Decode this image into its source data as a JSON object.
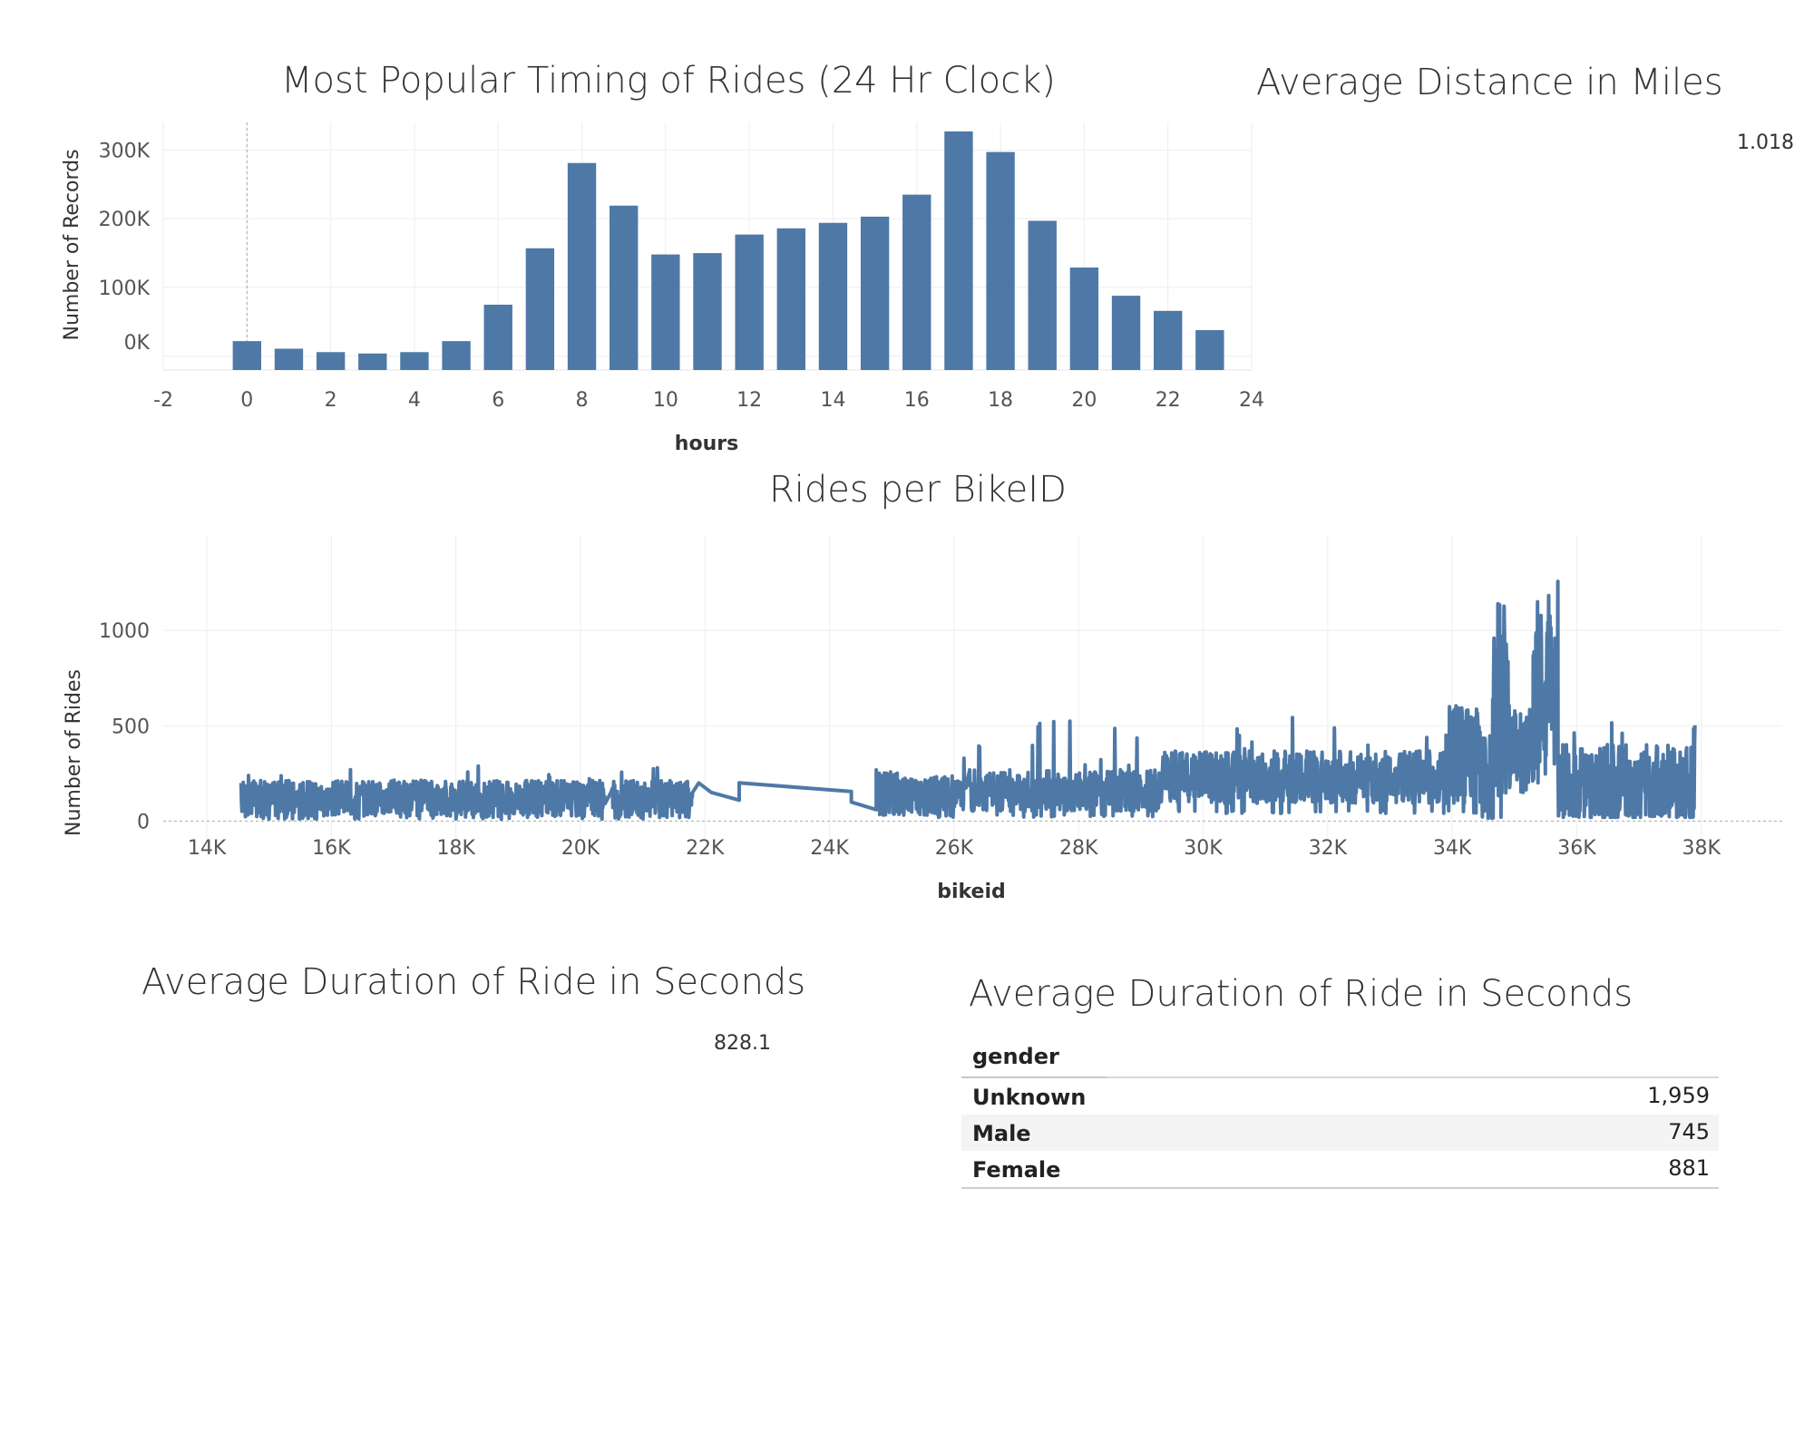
{
  "chart_data": [
    {
      "type": "bar",
      "title": "Most Popular Timing of Rides (24 Hr Clock)",
      "xlabel": "hours",
      "ylabel": "Number of Records",
      "xlim": [
        -2,
        24
      ],
      "ylim": [
        -20000,
        340000
      ],
      "xticks": [
        "-2",
        "0",
        "2",
        "4",
        "6",
        "8",
        "10",
        "12",
        "14",
        "16",
        "18",
        "20",
        "22",
        "24"
      ],
      "yticks": [
        "0K",
        "100K",
        "200K",
        "300K"
      ],
      "x": [
        0,
        1,
        2,
        3,
        4,
        5,
        6,
        7,
        8,
        9,
        10,
        11,
        12,
        13,
        14,
        15,
        16,
        17,
        18,
        19,
        20,
        21,
        22,
        23
      ],
      "values": [
        22000,
        11000,
        6000,
        4000,
        6000,
        22000,
        75000,
        157000,
        281000,
        219000,
        148000,
        150000,
        177000,
        186000,
        194000,
        203000,
        235000,
        327000,
        297000,
        197000,
        129000,
        88000,
        66000,
        38000
      ],
      "grid": true,
      "color": "#4e79a7"
    },
    {
      "type": "line",
      "title": "Rides per BikeID",
      "xlabel": "bikeid",
      "ylabel": "Number of Rides",
      "xlim": [
        13300,
        39300
      ],
      "ylim": [
        -60,
        1500
      ],
      "xticks": [
        "14K",
        "16K",
        "18K",
        "20K",
        "22K",
        "24K",
        "26K",
        "28K",
        "30K",
        "32K",
        "34K",
        "36K",
        "38K"
      ],
      "yticks": [
        "0",
        "500",
        "1000"
      ],
      "segments": [
        {
          "from": 14550,
          "to": 20400,
          "low": 10,
          "high": 210,
          "spike": 290,
          "avg": 120
        },
        {
          "from": 20500,
          "to": 21800,
          "low": 10,
          "high": 215,
          "spike": 280,
          "avg": 115
        },
        {
          "from": 24750,
          "to": 25200,
          "low": 30,
          "high": 280,
          "spike": 340,
          "avg": 150
        },
        {
          "from": 25200,
          "to": 26200,
          "low": 20,
          "high": 230,
          "spike": 390,
          "avg": 140
        },
        {
          "from": 26250,
          "to": 29300,
          "low": 20,
          "high": 250,
          "spike": 530,
          "avg": 160
        },
        {
          "from": 29300,
          "to": 33900,
          "low": 40,
          "high": 330,
          "spike": 560,
          "avg": 230
        },
        {
          "from": 33900,
          "to": 34450,
          "low": 40,
          "high": 580,
          "spike": 660,
          "avg": 350
        },
        {
          "from": 34450,
          "to": 34650,
          "low": 10,
          "high": 500,
          "spike": 660,
          "avg": 250
        },
        {
          "from": 34650,
          "to": 34900,
          "low": 10,
          "high": 1150,
          "spike": 1150,
          "avg": 600
        },
        {
          "from": 34900,
          "to": 35300,
          "low": 150,
          "high": 580,
          "spike": 620,
          "avg": 380
        },
        {
          "from": 35300,
          "to": 35500,
          "low": 200,
          "high": 1150,
          "spike": 1150,
          "avg": 650
        },
        {
          "from": 35500,
          "to": 35700,
          "low": 300,
          "high": 1380,
          "spike": 1380,
          "avg": 800
        },
        {
          "from": 35700,
          "to": 37900,
          "low": 20,
          "high": 450,
          "spike": 540,
          "avg": 200
        }
      ],
      "connectors": [
        {
          "x": 21800,
          "y": 150
        },
        {
          "x": 21900,
          "y": 200
        },
        {
          "x": 22100,
          "y": 150
        },
        {
          "x": 22550,
          "y": 110
        },
        {
          "x": 22550,
          "y": 200
        },
        {
          "x": 24350,
          "y": 155
        },
        {
          "x": 24350,
          "y": 100
        },
        {
          "x": 24750,
          "y": 60
        }
      ],
      "grid": true,
      "color": "#4e79a7"
    }
  ],
  "kpis": {
    "avg_distance_title": "Average Distance in Miles",
    "avg_distance_value": "1.018",
    "avg_duration_title": "Average Duration of Ride in Seconds",
    "avg_duration_value": "828.1"
  },
  "gender_table": {
    "title": "Average Duration of Ride in Seconds",
    "header": "gender",
    "rows": [
      {
        "label": "Unknown",
        "value": "1,959"
      },
      {
        "label": "Male",
        "value": "745"
      },
      {
        "label": "Female",
        "value": "881"
      }
    ]
  }
}
